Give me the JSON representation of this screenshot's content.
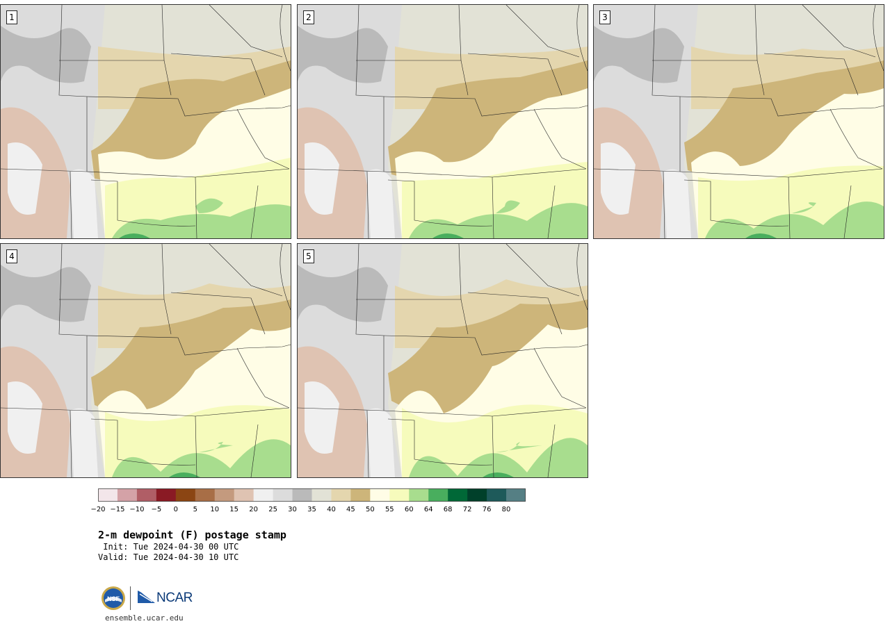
{
  "panels": [
    {
      "label": "1"
    },
    {
      "label": "2"
    },
    {
      "label": "3"
    },
    {
      "label": "4"
    },
    {
      "label": "5"
    }
  ],
  "colorbar": {
    "colors": [
      "#f3e6ea",
      "#d4a2a7",
      "#b05e66",
      "#8a1a24",
      "#8b4513",
      "#a86e46",
      "#c49a7e",
      "#dfc3b2",
      "#f0f0f0",
      "#dcdcdc",
      "#bababa",
      "#e2e2d6",
      "#e4d6ae",
      "#cdb57a",
      "#fffde6",
      "#f6fbbc",
      "#a8dd8e",
      "#49ae5e",
      "#006837",
      "#00402a",
      "#1e5a5a",
      "#557f84"
    ],
    "tick_labels": [
      "−20",
      "−15",
      "−10",
      "−5",
      "0",
      "5",
      "10",
      "15",
      "20",
      "25",
      "30",
      "35",
      "40",
      "45",
      "50",
      "55",
      "60",
      "64",
      "68",
      "72",
      "76",
      "80"
    ]
  },
  "title": "2-m dewpoint (F) postage stamp",
  "init": " Init: Tue 2024-04-30 00 UTC",
  "valid": "Valid: Tue 2024-04-30 10 UTC",
  "logo": {
    "nsf_text": "NSF",
    "ncar_text": "NCAR"
  },
  "site": "ensemble.ucar.edu"
}
